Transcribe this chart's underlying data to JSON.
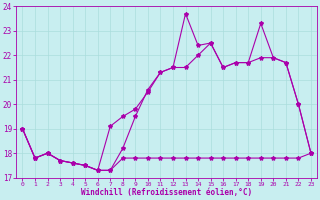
{
  "xlabel": "Windchill (Refroidissement éolien,°C)",
  "bg_color": "#c8eef0",
  "line_color": "#aa00aa",
  "grid_color": "#aadddd",
  "xlim": [
    -0.5,
    23.5
  ],
  "ylim": [
    17,
    24
  ],
  "yticks": [
    17,
    18,
    19,
    20,
    21,
    22,
    23,
    24
  ],
  "xticks": [
    0,
    1,
    2,
    3,
    4,
    5,
    6,
    7,
    8,
    9,
    10,
    11,
    12,
    13,
    14,
    15,
    16,
    17,
    18,
    19,
    20,
    21,
    22,
    23
  ],
  "line1_x": [
    0,
    1,
    2,
    3,
    4,
    5,
    6,
    7,
    8,
    9,
    10,
    11,
    12,
    13,
    14,
    15,
    16,
    17,
    18,
    19,
    20,
    21,
    22,
    23
  ],
  "line1_y": [
    19.0,
    17.8,
    18.0,
    17.7,
    17.6,
    17.5,
    17.3,
    17.3,
    17.8,
    17.8,
    17.8,
    17.8,
    17.8,
    17.8,
    17.8,
    17.8,
    17.8,
    17.8,
    17.8,
    17.8,
    17.8,
    17.8,
    17.8,
    18.0
  ],
  "line2_x": [
    0,
    1,
    2,
    3,
    4,
    5,
    6,
    7,
    8,
    9,
    10,
    11,
    12,
    13,
    14,
    15,
    16,
    17,
    18,
    19,
    20,
    21,
    22,
    23
  ],
  "line2_y": [
    19.0,
    17.8,
    18.0,
    17.7,
    17.6,
    17.5,
    17.3,
    19.1,
    19.5,
    19.8,
    20.5,
    21.3,
    21.5,
    23.7,
    22.4,
    22.5,
    21.5,
    21.7,
    21.7,
    23.3,
    21.9,
    21.7,
    20.0,
    18.0
  ],
  "line3_x": [
    0,
    1,
    2,
    3,
    4,
    5,
    6,
    7,
    8,
    9,
    10,
    11,
    12,
    13,
    14,
    15,
    16,
    17,
    18,
    19,
    20,
    21,
    22,
    23
  ],
  "line3_y": [
    19.0,
    17.8,
    18.0,
    17.7,
    17.6,
    17.5,
    17.3,
    17.3,
    18.2,
    19.5,
    20.6,
    21.3,
    21.5,
    21.5,
    22.0,
    22.5,
    21.5,
    21.7,
    21.7,
    21.9,
    21.9,
    21.7,
    20.0,
    18.0
  ]
}
